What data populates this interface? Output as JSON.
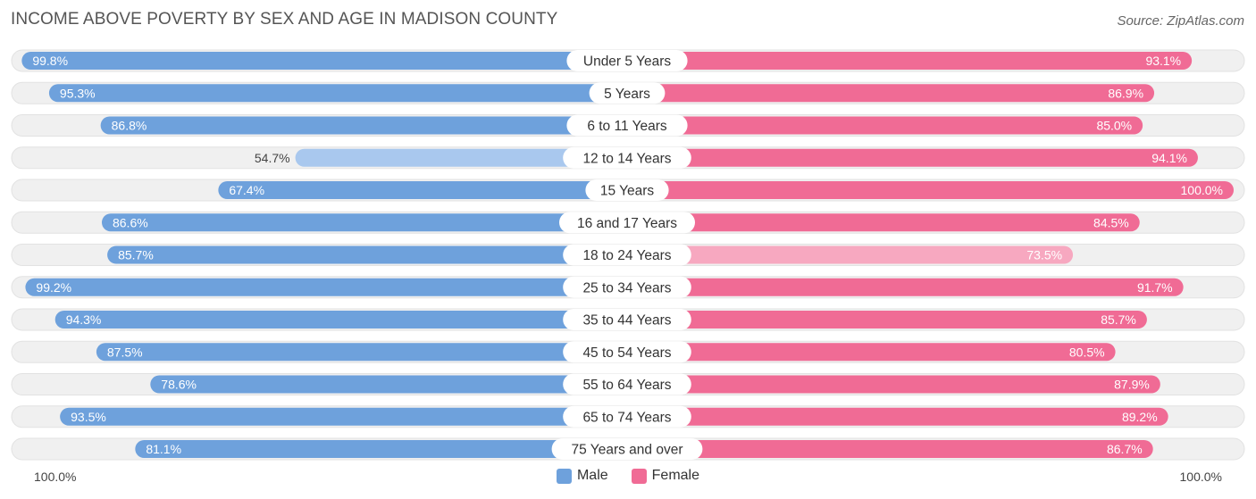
{
  "title": "INCOME ABOVE POVERTY BY SEX AND AGE IN MADISON COUNTY",
  "source": "Source: ZipAtlas.com",
  "colors": {
    "male": "#6ea1dc",
    "male_light": "#a9c8ee",
    "female": "#f06b95",
    "female_light": "#f7a8c0",
    "track": "#f0f0f0"
  },
  "legend": {
    "male": "Male",
    "female": "Female"
  },
  "axis": {
    "left_label": "100.0%",
    "right_label": "100.0%"
  },
  "chart_data": {
    "type": "bar",
    "orientation": "horizontal-diverging",
    "title": "INCOME ABOVE POVERTY BY SEX AND AGE IN MADISON COUNTY",
    "categories": [
      "Under 5 Years",
      "5 Years",
      "6 to 11 Years",
      "12 to 14 Years",
      "15 Years",
      "16 and 17 Years",
      "18 to 24 Years",
      "25 to 34 Years",
      "35 to 44 Years",
      "45 to 54 Years",
      "55 to 64 Years",
      "65 to 74 Years",
      "75 Years and over"
    ],
    "series": [
      {
        "name": "Male",
        "values": [
          99.8,
          95.3,
          86.8,
          54.7,
          67.4,
          86.6,
          85.7,
          99.2,
          94.3,
          87.5,
          78.6,
          93.5,
          81.1
        ],
        "labels": [
          "99.8%",
          "95.3%",
          "86.8%",
          "54.7%",
          "67.4%",
          "86.6%",
          "85.7%",
          "99.2%",
          "94.3%",
          "87.5%",
          "78.6%",
          "93.5%",
          "81.1%"
        ]
      },
      {
        "name": "Female",
        "values": [
          93.1,
          86.9,
          85.0,
          94.1,
          100.0,
          84.5,
          73.5,
          91.7,
          85.7,
          80.5,
          87.9,
          89.2,
          86.7
        ],
        "labels": [
          "93.1%",
          "86.9%",
          "85.0%",
          "94.1%",
          "100.0%",
          "84.5%",
          "73.5%",
          "91.7%",
          "85.7%",
          "80.5%",
          "87.9%",
          "89.2%",
          "86.7%"
        ]
      }
    ],
    "xlim": [
      0,
      100
    ],
    "unit": "%",
    "legend_position": "bottom-center"
  }
}
